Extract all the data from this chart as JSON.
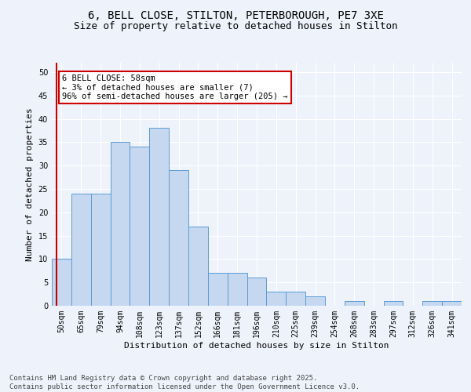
{
  "title1": "6, BELL CLOSE, STILTON, PETERBOROUGH, PE7 3XE",
  "title2": "Size of property relative to detached houses in Stilton",
  "xlabel": "Distribution of detached houses by size in Stilton",
  "ylabel": "Number of detached properties",
  "categories": [
    "50sqm",
    "65sqm",
    "79sqm",
    "94sqm",
    "108sqm",
    "123sqm",
    "137sqm",
    "152sqm",
    "166sqm",
    "181sqm",
    "196sqm",
    "210sqm",
    "225sqm",
    "239sqm",
    "254sqm",
    "268sqm",
    "283sqm",
    "297sqm",
    "312sqm",
    "326sqm",
    "341sqm"
  ],
  "values": [
    10,
    24,
    24,
    35,
    34,
    38,
    29,
    17,
    7,
    7,
    6,
    3,
    3,
    2,
    0,
    1,
    0,
    1,
    0,
    1,
    1
  ],
  "bar_color": "#c5d8f0",
  "bar_edge_color": "#5b9bd5",
  "background_color": "#eef3fb",
  "grid_color": "#ffffff",
  "annotation_text": "6 BELL CLOSE: 58sqm\n← 3% of detached houses are smaller (7)\n96% of semi-detached houses are larger (205) →",
  "annotation_box_color": "#ffffff",
  "annotation_box_edge": "#cc0000",
  "vline_color": "#cc0000",
  "ylim": [
    0,
    52
  ],
  "yticks": [
    0,
    5,
    10,
    15,
    20,
    25,
    30,
    35,
    40,
    45,
    50
  ],
  "footer": "Contains HM Land Registry data © Crown copyright and database right 2025.\nContains public sector information licensed under the Open Government Licence v3.0.",
  "title1_fontsize": 10,
  "title2_fontsize": 9,
  "xlabel_fontsize": 8,
  "ylabel_fontsize": 8,
  "tick_fontsize": 7,
  "annotation_fontsize": 7.5,
  "footer_fontsize": 6.5
}
